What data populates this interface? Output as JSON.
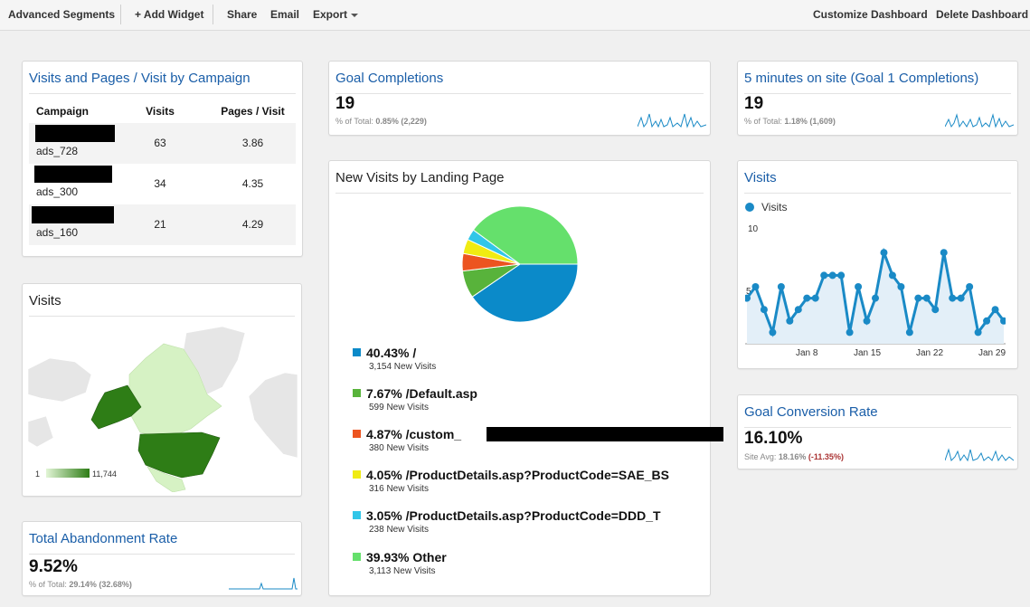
{
  "colors": {
    "accent": "#1a5ea8",
    "spark": "#1a8ac6",
    "map_dark": "#2e7d16",
    "map_light": "#d6f2c4"
  },
  "toolbar": {
    "advanced_segments": "Advanced Segments",
    "add_widget": "+ Add Widget",
    "share": "Share",
    "email": "Email",
    "export": "Export",
    "customize": "Customize Dashboard",
    "delete": "Delete Dashboard"
  },
  "campaign": {
    "title": "Visits and Pages / Visit by Campaign",
    "headers": [
      "Campaign",
      "Visits",
      "Pages / Visit"
    ],
    "rows": [
      {
        "name": "ads_728",
        "visits": "63",
        "ppv": "3.86"
      },
      {
        "name": "ads_300",
        "visits": "34",
        "ppv": "4.35"
      },
      {
        "name": "ads_160",
        "visits": "21",
        "ppv": "4.29"
      }
    ]
  },
  "map": {
    "title": "Visits",
    "legend_min": "1",
    "legend_max": "11,744"
  },
  "abandon": {
    "title": "Total Abandonment Rate",
    "value": "9.52%",
    "sub_prefix": "% of Total:",
    "sub_value": "29.14% (32.68%)"
  },
  "goal": {
    "title": "Goal Completions",
    "value": "19",
    "sub_prefix": "% of Total:",
    "sub_value": "0.85% (2,229)"
  },
  "landing": {
    "title": "New Visits by Landing Page",
    "items": [
      {
        "pct": "40.43%",
        "label": "/",
        "sub": "3,154 New Visits",
        "value": 40.43,
        "color": "#0b8ac9"
      },
      {
        "pct": "7.67%",
        "label": "/Default.asp",
        "sub": "599 New Visits",
        "value": 7.67,
        "color": "#58b33b"
      },
      {
        "pct": "4.87%",
        "label": "/custom_",
        "sub": "380 New Visits",
        "value": 4.87,
        "color": "#ec5420"
      },
      {
        "pct": "4.05%",
        "label": "/ProductDetails.asp?ProductCode=SAE_BS",
        "sub": "316 New Visits",
        "value": 4.05,
        "color": "#f0eb12"
      },
      {
        "pct": "3.05%",
        "label": "/ProductDetails.asp?ProductCode=DDD_T",
        "sub": "238 New Visits",
        "value": 3.05,
        "color": "#31c6e8"
      },
      {
        "pct": "39.93%",
        "label": "Other",
        "sub": "3,113 New Visits",
        "value": 39.93,
        "color": "#65e06c"
      }
    ]
  },
  "five_min": {
    "title": "5 minutes on site (Goal 1 Completions)",
    "value": "19",
    "sub_prefix": "% of Total:",
    "sub_value": "1.18% (1,609)"
  },
  "visits_chart": {
    "title": "Visits",
    "legend": "Visits",
    "y_ticks": [
      "10",
      "5"
    ],
    "x_ticks": [
      "Jan 8",
      "Jan 15",
      "Jan 22",
      "Jan 29"
    ]
  },
  "conversion": {
    "title": "Goal Conversion Rate",
    "value": "16.10%",
    "sub_prefix": "Site Avg:",
    "sub_value": "18.16%",
    "sub_delta": "(-11.35%)"
  },
  "chart_data": {
    "type": "line",
    "series": [
      {
        "name": "Visits",
        "values": [
          4,
          5,
          3,
          1,
          5,
          2,
          3,
          4,
          4,
          6,
          6,
          6,
          1,
          5,
          2,
          4,
          8,
          6,
          5,
          1,
          4,
          4,
          3,
          8,
          4,
          4,
          5,
          1,
          2,
          3,
          2
        ]
      }
    ],
    "ylim": [
      0,
      10
    ],
    "x_tick_labels": [
      "Jan 8",
      "Jan 15",
      "Jan 22",
      "Jan 29"
    ]
  }
}
